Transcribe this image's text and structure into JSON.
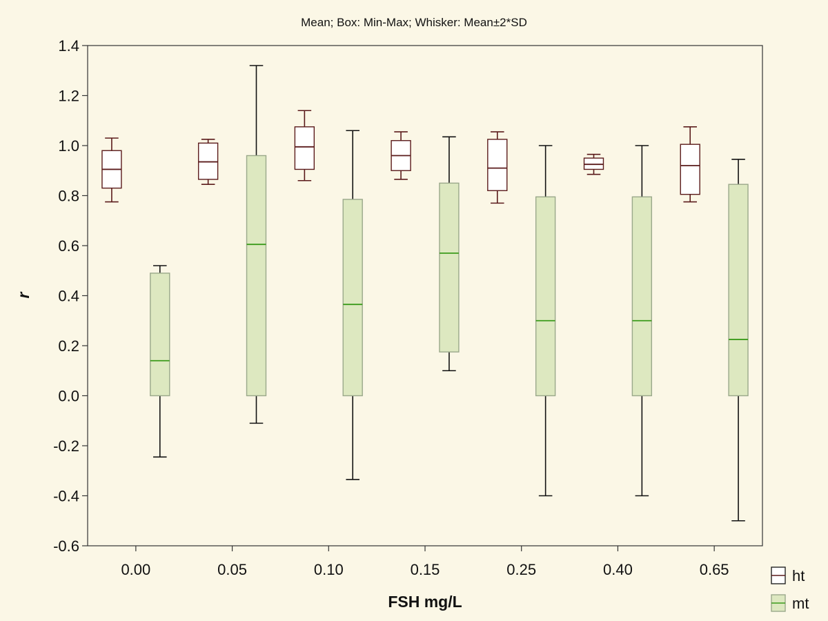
{
  "chart_data": {
    "type": "box",
    "title": "Mean; Box: Min-Max; Whisker: Mean±2*SD",
    "xlabel": "FSH mg/L",
    "ylabel": "r",
    "ylim": [
      -0.6,
      1.4
    ],
    "yticks": [
      "-0.6",
      "-0.4",
      "-0.2",
      "0.0",
      "0.2",
      "0.4",
      "0.6",
      "0.8",
      "1.0",
      "1.2",
      "1.4"
    ],
    "categories": [
      "0.00",
      "0.05",
      "0.10",
      "0.15",
      "0.25",
      "0.40",
      "0.65"
    ],
    "grid": false,
    "legend_position": "bottom-right",
    "series": [
      {
        "name": "ht",
        "box_fill": "#ffffff",
        "line_color": "#5a1a1a",
        "mean": [
          0.905,
          0.935,
          0.995,
          0.96,
          0.91,
          0.925,
          0.92
        ],
        "box_min": [
          0.83,
          0.865,
          0.905,
          0.9,
          0.82,
          0.905,
          0.805
        ],
        "box_max": [
          0.98,
          1.01,
          1.075,
          1.02,
          1.025,
          0.95,
          1.005
        ],
        "whisker_low": [
          0.775,
          0.845,
          0.86,
          0.865,
          0.77,
          0.885,
          0.775
        ],
        "whisker_high": [
          1.03,
          1.025,
          1.14,
          1.055,
          1.055,
          0.965,
          1.075
        ]
      },
      {
        "name": "mt",
        "box_fill": "#dde8c0",
        "line_color": "#3a9a1a",
        "mean": [
          0.14,
          0.605,
          0.365,
          0.57,
          0.3,
          0.3,
          0.225
        ],
        "box_min": [
          0.0,
          0.0,
          0.0,
          0.175,
          0.0,
          0.0,
          0.0
        ],
        "box_max": [
          0.49,
          0.96,
          0.785,
          0.85,
          0.795,
          0.795,
          0.845
        ],
        "whisker_low": [
          -0.245,
          -0.11,
          -0.335,
          0.1,
          -0.4,
          -0.4,
          -0.5
        ],
        "whisker_high": [
          0.52,
          1.32,
          1.06,
          1.035,
          1.0,
          1.0,
          0.945
        ]
      }
    ]
  }
}
